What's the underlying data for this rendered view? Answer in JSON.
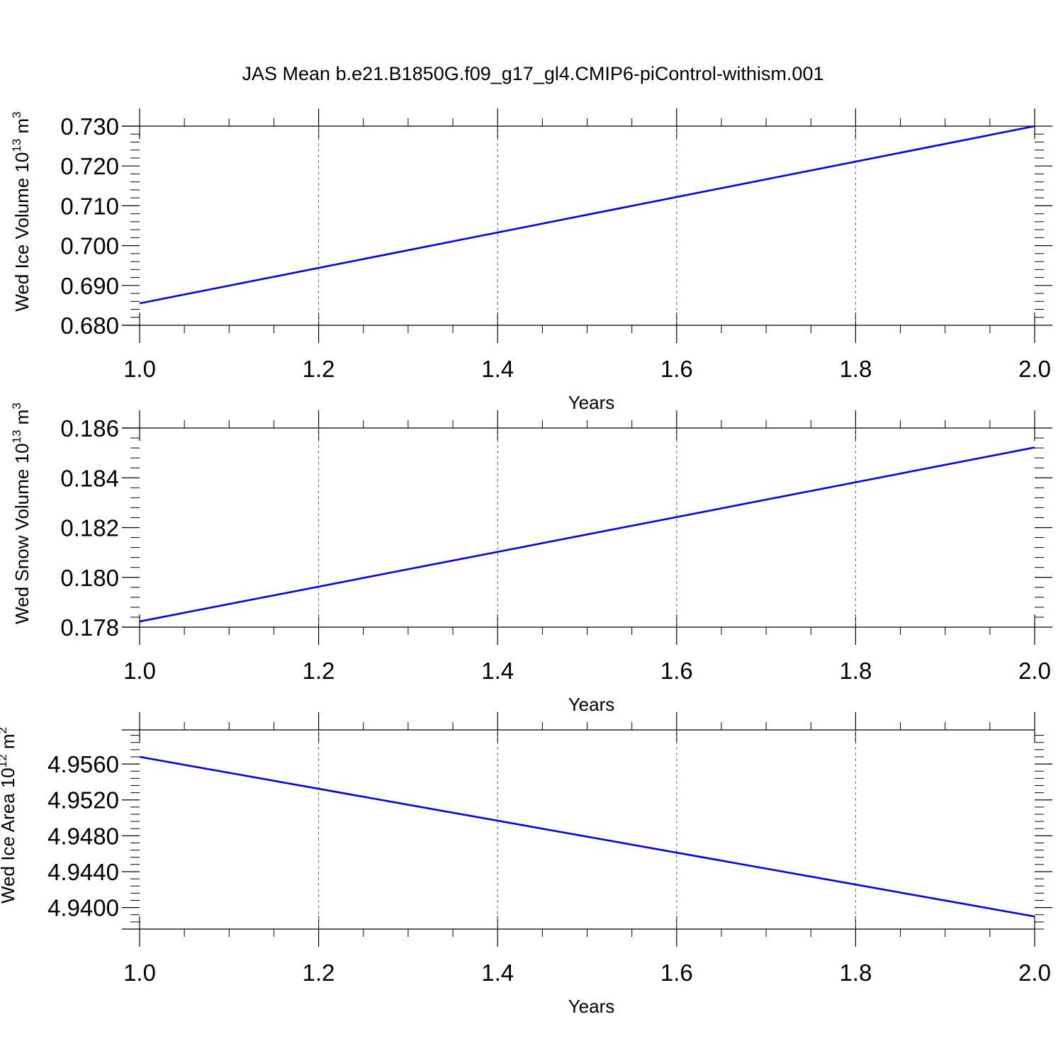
{
  "figure": {
    "title": "JAS Mean b.e21.B1850G.f09_g17_gl4.CMIP6-piControl-withism.001"
  },
  "chart_data": [
    {
      "type": "line",
      "xlabel": "Years",
      "ylabel": {
        "text": "Wed Ice Volume 10",
        "exponent": "13",
        "unit": " m",
        "unit_exponent": "3"
      },
      "xlim": [
        1.0,
        2.0
      ],
      "ylim": [
        0.68,
        0.73
      ],
      "x_ticks": [
        "1.0",
        "1.2",
        "1.4",
        "1.6",
        "1.8",
        "2.0"
      ],
      "y_ticks": [
        "0.680",
        "0.690",
        "0.700",
        "0.710",
        "0.720",
        "0.730"
      ],
      "grid": "vertical dashed at major x ticks",
      "series": [
        {
          "color": "#0000ee",
          "x": [
            1.0,
            2.0
          ],
          "y": [
            0.6855,
            0.73
          ]
        }
      ]
    },
    {
      "type": "line",
      "xlabel": "Years",
      "ylabel": {
        "text": "Wed Snow Volume 10",
        "exponent": "13",
        "unit": " m",
        "unit_exponent": "3"
      },
      "xlim": [
        1.0,
        2.0
      ],
      "ylim": [
        0.178,
        0.186
      ],
      "x_ticks": [
        "1.0",
        "1.2",
        "1.4",
        "1.6",
        "1.8",
        "2.0"
      ],
      "y_ticks": [
        "0.178",
        "0.180",
        "0.182",
        "0.184",
        "0.186"
      ],
      "grid": "vertical dashed at major x ticks",
      "series": [
        {
          "color": "#0000ee",
          "x": [
            1.0,
            2.0
          ],
          "y": [
            0.17823,
            0.18522
          ]
        }
      ]
    },
    {
      "type": "line",
      "xlabel": "Years",
      "ylabel": {
        "text": "Wed Ice Area 10",
        "exponent": "12",
        "unit": " m",
        "unit_exponent": "2"
      },
      "xlim": [
        1.0,
        2.0
      ],
      "ylim": [
        4.9376,
        4.9598
      ],
      "x_ticks": [
        "1.0",
        "1.2",
        "1.4",
        "1.6",
        "1.8",
        "2.0"
      ],
      "y_ticks": [
        "4.9400",
        "4.9440",
        "4.9480",
        "4.9520",
        "4.9560"
      ],
      "grid": "vertical dashed at major x ticks",
      "series": [
        {
          "color": "#0000ee",
          "x": [
            1.0,
            2.0
          ],
          "y": [
            4.9568,
            4.939
          ]
        }
      ]
    }
  ]
}
